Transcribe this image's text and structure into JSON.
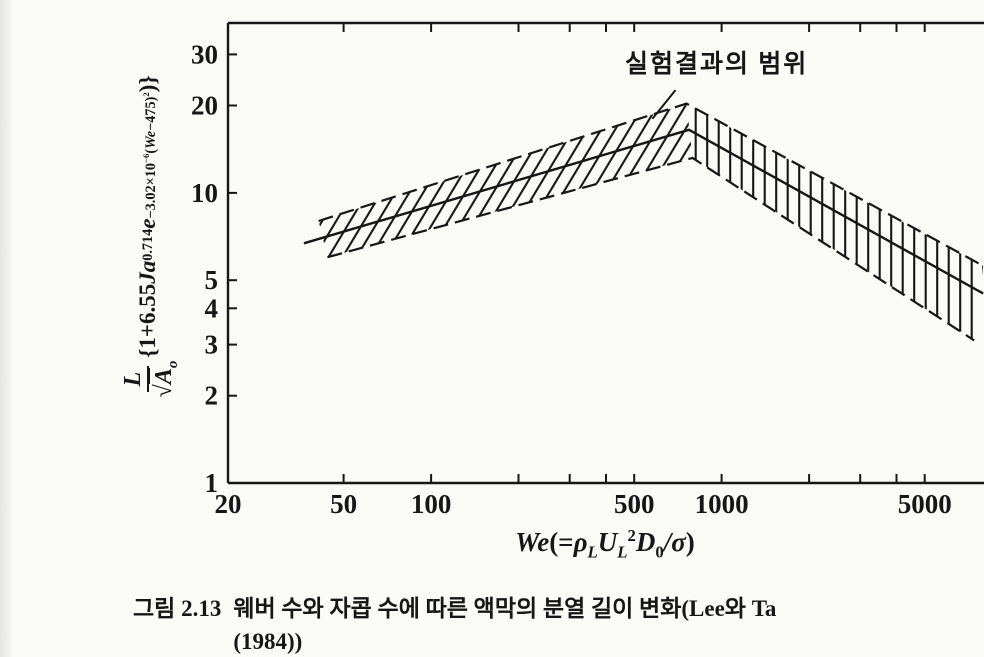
{
  "colors": {
    "ink": "#161616",
    "paper": "#fafaf7"
  },
  "chart_data": {
    "type": "line",
    "xscale": "log",
    "yscale": "log",
    "xlim": [
      20,
      8000
    ],
    "ylim": [
      1,
      38.5
    ],
    "grid": false,
    "xlabel_plain": "We(=ρLUL²D0/σ)",
    "ylabel_plain": "L/√Ao {1+6.55 Ja^0.714 e^(−3.02×10^−6 (We−475)^2)}",
    "x_ticks_labeled": [
      20,
      50,
      100,
      500,
      1000,
      5000
    ],
    "x_ticks_minor": [
      200,
      300,
      400,
      2000,
      3000,
      4000
    ],
    "x_ticks_top": [
      50,
      100,
      200,
      300,
      400,
      500,
      1000,
      2000,
      3000,
      4000,
      5000
    ],
    "y_ticks_labeled": [
      1,
      2,
      3,
      4,
      5,
      10,
      20,
      30
    ],
    "center_line": [
      [
        36.5,
        6.7
      ],
      [
        772,
        16.5
      ],
      [
        7950,
        4.5
      ]
    ],
    "band_upper": [
      [
        41,
        8.0
      ],
      [
        757,
        20.3
      ],
      [
        7950,
        5.6
      ]
    ],
    "band_lower": [
      [
        44,
        6.0
      ],
      [
        794,
        13.2
      ],
      [
        7400,
        3.1
      ]
    ],
    "band_style": {
      "hatch_rising": "diagonal",
      "hatch_falling": "vertical",
      "boundary": "dashed",
      "center": "solid"
    },
    "annotation": {
      "label": "실험결과의 범위",
      "leader_from": [
        694,
        22.6
      ],
      "leader_to": [
        578,
        18.0
      ]
    },
    "xlabel_rich": [
      {
        "t": "We",
        "s": "i"
      },
      {
        "t": "(=",
        "s": ""
      },
      {
        "t": "ρ",
        "s": "i"
      },
      {
        "t": "L",
        "s": "i sub"
      },
      {
        "t": "U",
        "s": "i"
      },
      {
        "t": "L",
        "s": "i sub"
      },
      {
        "t": "2",
        "s": "sup"
      },
      {
        "t": "D",
        "s": "i"
      },
      {
        "t": "0",
        "s": "sub"
      },
      {
        "t": "/",
        "s": "i"
      },
      {
        "t": "σ",
        "s": "i"
      },
      {
        "t": ")",
        "s": ""
      }
    ],
    "ylabel_rich": [
      {
        "frac": {
          "num": [
            {
              "t": "L",
              "s": "i"
            }
          ],
          "den": [
            {
              "t": "√",
              "s": ""
            },
            {
              "t": "A",
              "s": "i bar"
            },
            {
              "t": "o",
              "s": "i sub"
            }
          ]
        }
      },
      {
        "t": " {1+6.55 ",
        "s": ""
      },
      {
        "t": "Ja",
        "s": "i"
      },
      {
        "t": "0.714",
        "s": "sup"
      },
      {
        "t": " ",
        "s": ""
      },
      {
        "t": "e",
        "s": "i"
      },
      {
        "s": "sup",
        "c": [
          {
            "t": "−3.02×10",
            "s": ""
          },
          {
            "t": "−6",
            "s": "sup"
          },
          {
            "t": "(",
            "s": ""
          },
          {
            "t": "We",
            "s": "i"
          },
          {
            "t": "−475)",
            "s": ""
          },
          {
            "t": "2",
            "s": "sup"
          }
        ]
      },
      {
        "t": ")}",
        "s": ""
      }
    ]
  },
  "caption": {
    "figure_label": "그림 2.13",
    "line1": "웨버 수와 자콥 수에 따른 액막의 분열 길이 변화(Lee와 Ta",
    "line2": "(1984))"
  }
}
